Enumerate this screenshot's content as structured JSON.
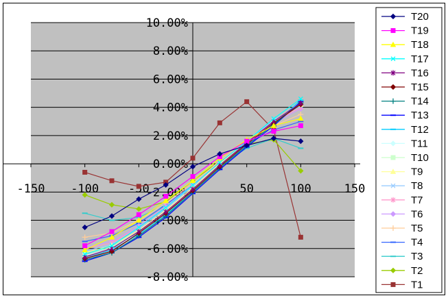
{
  "chart_data": {
    "type": "line",
    "title": "",
    "xlabel": "",
    "ylabel": "",
    "xlim": [
      -150,
      150
    ],
    "ylim": [
      -8,
      10
    ],
    "x_ticks": [
      "-150",
      "-100",
      "-50",
      "0",
      "50",
      "100",
      "150"
    ],
    "y_ticks": [
      "10.00%",
      "8.00%",
      "6.00%",
      "4.00%",
      "2.00%",
      "0.00%",
      "-2.00%",
      "-4.00%",
      "-6.00%",
      "-8.00%"
    ],
    "grid": true,
    "legend_position": "right",
    "x": [
      -100,
      -75,
      -50,
      -25,
      0,
      25,
      50,
      75,
      100
    ],
    "series": [
      {
        "name": "T20",
        "color": "#000080",
        "marker": "diamond",
        "values": [
          -4.5,
          -3.7,
          -2.5,
          -1.5,
          -0.2,
          0.7,
          1.3,
          1.8,
          1.6
        ]
      },
      {
        "name": "T19",
        "color": "#ff00ff",
        "marker": "square",
        "values": [
          -5.8,
          -4.8,
          -3.6,
          -2.3,
          -0.9,
          0.5,
          1.6,
          2.3,
          2.7
        ]
      },
      {
        "name": "T18",
        "color": "#ffff00",
        "marker": "triangle",
        "values": [
          -6.1,
          -5.2,
          -4.0,
          -2.6,
          -1.2,
          0.4,
          1.7,
          2.7,
          3.2
        ]
      },
      {
        "name": "T17",
        "color": "#00ffff",
        "marker": "x",
        "values": [
          -6.4,
          -5.8,
          -4.5,
          -3.1,
          -1.5,
          0.1,
          1.6,
          3.2,
          4.6
        ]
      },
      {
        "name": "T16",
        "color": "#800080",
        "marker": "star",
        "values": [
          -6.6,
          -6.0,
          -4.8,
          -3.4,
          -1.8,
          -0.1,
          1.5,
          3.0,
          4.3
        ]
      },
      {
        "name": "T15",
        "color": "#800000",
        "marker": "diamond",
        "values": [
          -6.7,
          -6.2,
          -4.9,
          -3.5,
          -1.9,
          -0.2,
          1.4,
          2.9,
          4.2
        ]
      },
      {
        "name": "T14",
        "color": "#008080",
        "marker": "plus",
        "values": [
          -6.8,
          -6.3,
          -5.1,
          -3.7,
          -2.0,
          -0.3,
          1.3,
          2.8,
          4.3
        ]
      },
      {
        "name": "T13",
        "color": "#0000ff",
        "marker": "dash",
        "values": [
          -6.9,
          -6.3,
          -5.2,
          -3.8,
          -2.1,
          -0.4,
          1.2,
          2.7,
          4.4
        ]
      },
      {
        "name": "T12",
        "color": "#00ccff",
        "marker": "dash",
        "values": [
          -6.7,
          -6.1,
          -5.0,
          -3.6,
          -2.0,
          -0.3,
          1.3,
          2.8,
          4.5
        ]
      },
      {
        "name": "T11",
        "color": "#ccffff",
        "marker": "diamond",
        "values": [
          -6.5,
          -6.0,
          -4.9,
          -3.5,
          -1.9,
          -0.2,
          1.4,
          2.9,
          4.4
        ]
      },
      {
        "name": "T10",
        "color": "#ccffcc",
        "marker": "square",
        "values": [
          -6.4,
          -5.9,
          -4.8,
          -3.4,
          -1.8,
          -0.1,
          1.5,
          3.0,
          4.3
        ]
      },
      {
        "name": "T9",
        "color": "#ffff99",
        "marker": "triangle",
        "values": [
          -6.3,
          -5.8,
          -4.7,
          -3.3,
          -1.7,
          0.0,
          1.5,
          3.0,
          4.2
        ]
      },
      {
        "name": "T8",
        "color": "#99ccff",
        "marker": "x",
        "values": [
          -6.2,
          -5.7,
          -4.6,
          -3.2,
          -1.6,
          0.0,
          1.6,
          3.1,
          4.1
        ]
      },
      {
        "name": "T7",
        "color": "#ff99cc",
        "marker": "star",
        "values": [
          -6.0,
          -5.6,
          -4.5,
          -3.1,
          -1.6,
          0.1,
          1.6,
          3.0,
          4.0
        ]
      },
      {
        "name": "T6",
        "color": "#cc99ff",
        "marker": "diamond",
        "values": [
          -5.9,
          -5.5,
          -4.4,
          -3.0,
          -1.5,
          0.1,
          1.6,
          2.9,
          3.9
        ]
      },
      {
        "name": "T5",
        "color": "#ffcc99",
        "marker": "plus",
        "values": [
          -5.2,
          -4.9,
          -4.0,
          -2.8,
          -1.4,
          0.2,
          1.6,
          2.7,
          3.5
        ]
      },
      {
        "name": "T4",
        "color": "#3366ff",
        "marker": "dash",
        "values": [
          -5.5,
          -5.1,
          -4.2,
          -2.9,
          -1.5,
          0.0,
          1.4,
          2.4,
          3.0
        ]
      },
      {
        "name": "T3",
        "color": "#33cccc",
        "marker": "dash",
        "values": [
          -3.5,
          -4.0,
          -3.8,
          -2.9,
          -1.6,
          -0.1,
          1.1,
          1.8,
          1.1
        ]
      },
      {
        "name": "T2",
        "color": "#99cc00",
        "marker": "diamond",
        "values": [
          -2.2,
          -2.9,
          -3.2,
          -2.7,
          -1.2,
          0.2,
          1.4,
          1.7,
          -0.5
        ]
      },
      {
        "name": "T1",
        "color": "#993333",
        "marker": "square",
        "values": [
          -0.6,
          -1.2,
          -1.6,
          -1.3,
          0.4,
          2.9,
          4.4,
          2.4,
          -5.2
        ]
      }
    ]
  }
}
